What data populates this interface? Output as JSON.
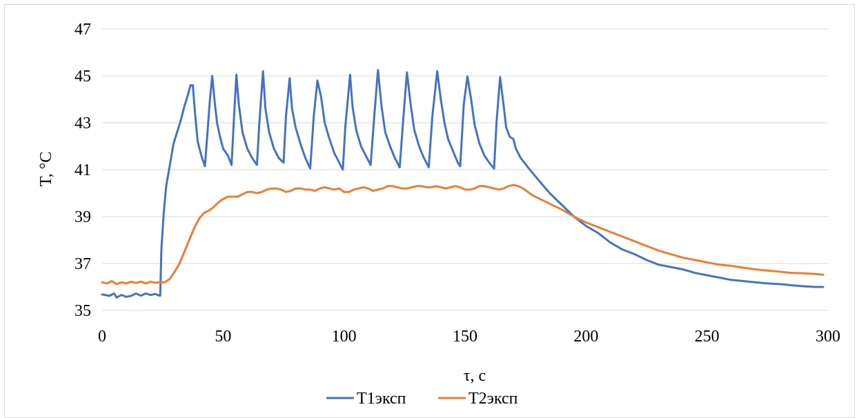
{
  "chart_data": {
    "type": "line",
    "title": "",
    "xlabel": "τ, с",
    "ylabel": "T, °C",
    "xlim": [
      0,
      300
    ],
    "ylim": [
      35,
      47
    ],
    "x_ticks": [
      "0",
      "50",
      "100",
      "150",
      "200",
      "250",
      "300"
    ],
    "y_ticks": [
      "35",
      "37",
      "39",
      "41",
      "43",
      "45",
      "47"
    ],
    "grid": "horizontal",
    "legend_position": "bottom",
    "series": [
      {
        "name": "T1эксп",
        "color": "#4472C4",
        "points": [
          [
            0,
            35.68
          ],
          [
            3,
            35.62
          ],
          [
            5,
            35.72
          ],
          [
            6,
            35.55
          ],
          [
            8,
            35.66
          ],
          [
            10,
            35.58
          ],
          [
            12,
            35.62
          ],
          [
            14,
            35.72
          ],
          [
            16,
            35.63
          ],
          [
            18,
            35.72
          ],
          [
            20,
            35.66
          ],
          [
            22,
            35.7
          ],
          [
            23,
            35.65
          ],
          [
            24,
            35.63
          ],
          [
            24.5,
            37.6
          ],
          [
            25.5,
            39.2
          ],
          [
            26.5,
            40.3
          ],
          [
            28,
            41.2
          ],
          [
            29.5,
            42.1
          ],
          [
            31,
            42.6
          ],
          [
            32.5,
            43.1
          ],
          [
            34,
            43.7
          ],
          [
            35.5,
            44.2
          ],
          [
            36.5,
            44.6
          ],
          [
            37.5,
            44.6
          ],
          [
            38.5,
            43.3
          ],
          [
            39.5,
            42.2
          ],
          [
            41,
            41.6
          ],
          [
            42.5,
            41.15
          ],
          [
            43.5,
            42.5
          ],
          [
            44.5,
            43.9
          ],
          [
            45.5,
            45.0
          ],
          [
            46.5,
            43.9
          ],
          [
            47.5,
            43.0
          ],
          [
            48.5,
            42.5
          ],
          [
            50,
            41.9
          ],
          [
            52,
            41.6
          ],
          [
            53.5,
            41.2
          ],
          [
            54.5,
            43.2
          ],
          [
            55.5,
            45.05
          ],
          [
            56.5,
            43.8
          ],
          [
            58,
            42.6
          ],
          [
            60,
            41.9
          ],
          [
            62,
            41.5
          ],
          [
            64,
            41.2
          ],
          [
            65,
            43.0
          ],
          [
            66.5,
            45.2
          ],
          [
            67.5,
            43.6
          ],
          [
            69,
            42.6
          ],
          [
            71,
            41.9
          ],
          [
            73,
            41.5
          ],
          [
            75,
            41.3
          ],
          [
            76,
            43.3
          ],
          [
            77.5,
            44.9
          ],
          [
            78.5,
            43.6
          ],
          [
            80,
            42.8
          ],
          [
            82,
            42.1
          ],
          [
            84,
            41.5
          ],
          [
            86,
            41.05
          ],
          [
            87.5,
            43.3
          ],
          [
            89,
            44.8
          ],
          [
            90.5,
            44.1
          ],
          [
            92,
            43.0
          ],
          [
            94,
            42.3
          ],
          [
            96,
            41.7
          ],
          [
            98,
            41.3
          ],
          [
            99.5,
            41.0
          ],
          [
            100.5,
            42.8
          ],
          [
            102.5,
            45.05
          ],
          [
            103.5,
            43.7
          ],
          [
            105,
            42.7
          ],
          [
            107,
            42.0
          ],
          [
            109,
            41.6
          ],
          [
            111,
            41.2
          ],
          [
            112.5,
            43.3
          ],
          [
            114,
            45.25
          ],
          [
            115.5,
            43.7
          ],
          [
            117,
            42.6
          ],
          [
            119,
            42.0
          ],
          [
            121,
            41.5
          ],
          [
            123,
            41.1
          ],
          [
            124.5,
            43.2
          ],
          [
            126,
            45.15
          ],
          [
            127.5,
            43.8
          ],
          [
            129,
            42.7
          ],
          [
            131,
            42.0
          ],
          [
            133,
            41.5
          ],
          [
            135,
            41.1
          ],
          [
            136.5,
            43.3
          ],
          [
            138.5,
            45.2
          ],
          [
            140,
            44.0
          ],
          [
            141.5,
            43.0
          ],
          [
            143,
            42.3
          ],
          [
            145,
            41.8
          ],
          [
            147,
            41.3
          ],
          [
            148,
            41.15
          ],
          [
            149.5,
            43.8
          ],
          [
            151,
            44.98
          ],
          [
            152.5,
            44.0
          ],
          [
            154,
            42.9
          ],
          [
            156,
            42.1
          ],
          [
            158,
            41.6
          ],
          [
            160,
            41.3
          ],
          [
            162,
            41.05
          ],
          [
            163,
            43.0
          ],
          [
            164.5,
            44.95
          ],
          [
            166,
            43.7
          ],
          [
            167,
            42.8
          ],
          [
            168.5,
            42.4
          ],
          [
            170,
            42.3
          ],
          [
            171,
            41.9
          ],
          [
            173,
            41.5
          ],
          [
            176,
            41.1
          ],
          [
            180,
            40.6
          ],
          [
            185,
            40.0
          ],
          [
            190,
            39.5
          ],
          [
            195,
            39.0
          ],
          [
            200,
            38.6
          ],
          [
            205,
            38.3
          ],
          [
            210,
            37.9
          ],
          [
            215,
            37.6
          ],
          [
            220,
            37.4
          ],
          [
            225,
            37.15
          ],
          [
            230,
            36.95
          ],
          [
            235,
            36.85
          ],
          [
            240,
            36.75
          ],
          [
            245,
            36.6
          ],
          [
            250,
            36.5
          ],
          [
            255,
            36.4
          ],
          [
            260,
            36.3
          ],
          [
            265,
            36.25
          ],
          [
            270,
            36.2
          ],
          [
            275,
            36.15
          ],
          [
            280,
            36.12
          ],
          [
            285,
            36.07
          ],
          [
            290,
            36.03
          ],
          [
            295,
            36.0
          ],
          [
            298,
            36.0
          ]
        ]
      },
      {
        "name": "T2эксп",
        "color": "#ED7D31",
        "points": [
          [
            0,
            36.2
          ],
          [
            2,
            36.15
          ],
          [
            4,
            36.25
          ],
          [
            6,
            36.12
          ],
          [
            8,
            36.2
          ],
          [
            10,
            36.15
          ],
          [
            12,
            36.22
          ],
          [
            14,
            36.17
          ],
          [
            16,
            36.23
          ],
          [
            18,
            36.15
          ],
          [
            20,
            36.22
          ],
          [
            22,
            36.18
          ],
          [
            24,
            36.2
          ],
          [
            26,
            36.2
          ],
          [
            28,
            36.35
          ],
          [
            30,
            36.65
          ],
          [
            32,
            37.0
          ],
          [
            34,
            37.5
          ],
          [
            36,
            38.0
          ],
          [
            38,
            38.5
          ],
          [
            40,
            38.9
          ],
          [
            42,
            39.15
          ],
          [
            44,
            39.25
          ],
          [
            46,
            39.4
          ],
          [
            48,
            39.6
          ],
          [
            50,
            39.75
          ],
          [
            52,
            39.85
          ],
          [
            54,
            39.85
          ],
          [
            56,
            39.85
          ],
          [
            58,
            39.95
          ],
          [
            60,
            40.05
          ],
          [
            62,
            40.05
          ],
          [
            64,
            40.0
          ],
          [
            66,
            40.05
          ],
          [
            68,
            40.15
          ],
          [
            70,
            40.2
          ],
          [
            72,
            40.2
          ],
          [
            74,
            40.15
          ],
          [
            76,
            40.05
          ],
          [
            78,
            40.1
          ],
          [
            80,
            40.2
          ],
          [
            82,
            40.2
          ],
          [
            84,
            40.15
          ],
          [
            86,
            40.15
          ],
          [
            88,
            40.1
          ],
          [
            90,
            40.2
          ],
          [
            92,
            40.25
          ],
          [
            94,
            40.2
          ],
          [
            96,
            40.15
          ],
          [
            98,
            40.2
          ],
          [
            100,
            40.05
          ],
          [
            102,
            40.05
          ],
          [
            104,
            40.15
          ],
          [
            106,
            40.2
          ],
          [
            108,
            40.25
          ],
          [
            110,
            40.2
          ],
          [
            112,
            40.1
          ],
          [
            114,
            40.15
          ],
          [
            116,
            40.2
          ],
          [
            118,
            40.3
          ],
          [
            120,
            40.3
          ],
          [
            122,
            40.25
          ],
          [
            124,
            40.2
          ],
          [
            126,
            40.2
          ],
          [
            128,
            40.25
          ],
          [
            130,
            40.3
          ],
          [
            132,
            40.3
          ],
          [
            134,
            40.25
          ],
          [
            136,
            40.25
          ],
          [
            138,
            40.3
          ],
          [
            140,
            40.25
          ],
          [
            142,
            40.2
          ],
          [
            144,
            40.25
          ],
          [
            146,
            40.3
          ],
          [
            148,
            40.25
          ],
          [
            150,
            40.15
          ],
          [
            152,
            40.15
          ],
          [
            154,
            40.2
          ],
          [
            156,
            40.3
          ],
          [
            158,
            40.3
          ],
          [
            160,
            40.25
          ],
          [
            162,
            40.2
          ],
          [
            164,
            40.15
          ],
          [
            166,
            40.2
          ],
          [
            168,
            40.3
          ],
          [
            170,
            40.35
          ],
          [
            172,
            40.3
          ],
          [
            174,
            40.2
          ],
          [
            176,
            40.05
          ],
          [
            178,
            39.9
          ],
          [
            180,
            39.8
          ],
          [
            185,
            39.55
          ],
          [
            190,
            39.3
          ],
          [
            195,
            39.0
          ],
          [
            200,
            38.75
          ],
          [
            205,
            38.55
          ],
          [
            210,
            38.35
          ],
          [
            215,
            38.15
          ],
          [
            220,
            37.95
          ],
          [
            225,
            37.75
          ],
          [
            230,
            37.55
          ],
          [
            235,
            37.4
          ],
          [
            240,
            37.25
          ],
          [
            245,
            37.15
          ],
          [
            250,
            37.05
          ],
          [
            255,
            36.95
          ],
          [
            260,
            36.9
          ],
          [
            265,
            36.82
          ],
          [
            270,
            36.75
          ],
          [
            275,
            36.7
          ],
          [
            280,
            36.65
          ],
          [
            285,
            36.6
          ],
          [
            290,
            36.58
          ],
          [
            295,
            36.55
          ],
          [
            298,
            36.52
          ]
        ]
      }
    ]
  }
}
